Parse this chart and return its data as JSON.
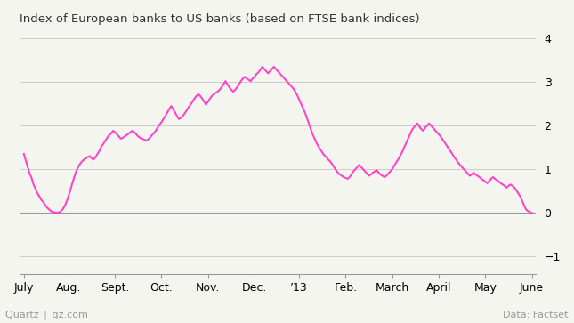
{
  "title": "Index of European banks to US banks (based on FTSE bank indices)",
  "ylabel_right_values": [
    -1,
    0,
    1,
    2,
    3,
    4
  ],
  "ylim": [
    -1.4,
    4.2
  ],
  "line_color": "#FF44CC",
  "line_width": 1.5,
  "background_color": "#F5F5F0",
  "footer_left": "Quartz | qz.com",
  "footer_right": "Data: Factset",
  "x_tick_labels": [
    "July",
    "Aug.",
    "Sept.",
    "Oct.",
    "Nov.",
    "Dec.",
    "’13",
    "Feb.",
    "March",
    "April",
    "May",
    "June"
  ],
  "data_points": [
    1.35,
    1.2,
    1.05,
    0.9,
    0.8,
    0.65,
    0.55,
    0.45,
    0.38,
    0.3,
    0.25,
    0.18,
    0.12,
    0.08,
    0.04,
    0.02,
    0.01,
    0.0,
    0.01,
    0.03,
    0.08,
    0.15,
    0.25,
    0.38,
    0.52,
    0.68,
    0.82,
    0.95,
    1.05,
    1.12,
    1.18,
    1.22,
    1.25,
    1.28,
    1.3,
    1.25,
    1.22,
    1.28,
    1.35,
    1.42,
    1.52,
    1.58,
    1.65,
    1.72,
    1.78,
    1.82,
    1.88,
    1.85,
    1.8,
    1.75,
    1.7,
    1.72,
    1.75,
    1.78,
    1.82,
    1.85,
    1.88,
    1.85,
    1.8,
    1.75,
    1.72,
    1.7,
    1.68,
    1.65,
    1.68,
    1.72,
    1.78,
    1.82,
    1.88,
    1.95,
    2.02,
    2.08,
    2.15,
    2.22,
    2.3,
    2.38,
    2.45,
    2.38,
    2.3,
    2.22,
    2.15,
    2.18,
    2.22,
    2.28,
    2.35,
    2.42,
    2.48,
    2.55,
    2.62,
    2.68,
    2.72,
    2.68,
    2.62,
    2.55,
    2.48,
    2.55,
    2.62,
    2.68,
    2.72,
    2.75,
    2.78,
    2.82,
    2.88,
    2.95,
    3.02,
    2.95,
    2.88,
    2.82,
    2.78,
    2.82,
    2.88,
    2.95,
    3.02,
    3.08,
    3.12,
    3.08,
    3.05,
    3.02,
    3.08,
    3.12,
    3.18,
    3.22,
    3.28,
    3.35,
    3.3,
    3.25,
    3.2,
    3.25,
    3.3,
    3.35,
    3.3,
    3.25,
    3.2,
    3.15,
    3.1,
    3.05,
    3.0,
    2.95,
    2.9,
    2.85,
    2.78,
    2.7,
    2.6,
    2.5,
    2.4,
    2.3,
    2.18,
    2.05,
    1.92,
    1.8,
    1.7,
    1.6,
    1.52,
    1.45,
    1.38,
    1.32,
    1.28,
    1.22,
    1.18,
    1.12,
    1.05,
    0.98,
    0.92,
    0.88,
    0.85,
    0.82,
    0.8,
    0.78,
    0.82,
    0.88,
    0.95,
    1.0,
    1.05,
    1.1,
    1.05,
    1.0,
    0.95,
    0.9,
    0.85,
    0.88,
    0.92,
    0.95,
    0.98,
    0.92,
    0.88,
    0.85,
    0.82,
    0.85,
    0.9,
    0.95,
    1.0,
    1.08,
    1.15,
    1.22,
    1.3,
    1.38,
    1.48,
    1.58,
    1.68,
    1.78,
    1.88,
    1.95,
    2.0,
    2.05,
    1.98,
    1.92,
    1.88,
    1.95,
    2.0,
    2.05,
    2.0,
    1.95,
    1.9,
    1.85,
    1.8,
    1.75,
    1.68,
    1.62,
    1.55,
    1.48,
    1.42,
    1.35,
    1.28,
    1.22,
    1.15,
    1.1,
    1.05,
    1.0,
    0.95,
    0.9,
    0.85,
    0.88,
    0.92,
    0.88,
    0.85,
    0.82,
    0.78,
    0.75,
    0.72,
    0.68,
    0.72,
    0.78,
    0.82,
    0.78,
    0.75,
    0.72,
    0.68,
    0.65,
    0.62,
    0.58,
    0.62,
    0.65,
    0.62,
    0.58,
    0.52,
    0.45,
    0.38,
    0.28,
    0.18,
    0.08,
    0.04,
    0.02,
    0.0
  ]
}
